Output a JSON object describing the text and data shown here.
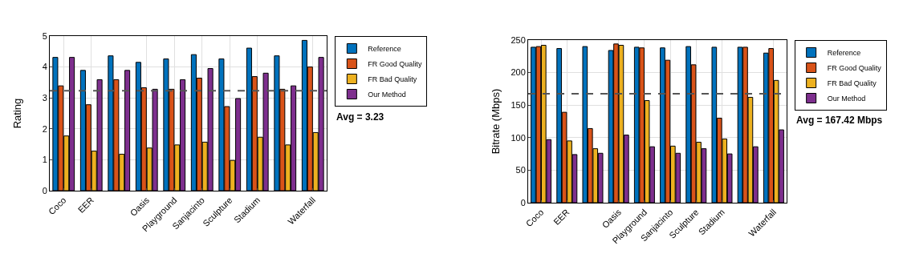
{
  "chart_data": [
    {
      "type": "bar",
      "ylabel": "Rating",
      "categories": [
        "Coco",
        "EER",
        null,
        "Oasis",
        "Playground",
        "Sanjacinto",
        "Sculpture",
        "Stadium",
        null,
        "Waterfall"
      ],
      "series": [
        {
          "name": "Reference",
          "color": "#0072bd",
          "values": [
            4.31,
            3.89,
            4.36,
            4.15,
            4.26,
            4.4,
            4.26,
            4.61,
            4.36,
            4.86
          ]
        },
        {
          "name": "FR Good Quality",
          "color": "#d95319",
          "values": [
            3.39,
            2.78,
            3.59,
            3.33,
            3.28,
            3.64,
            2.72,
            3.69,
            3.28,
            4.0
          ]
        },
        {
          "name": "FR Bad Quality",
          "color": "#edb120",
          "values": [
            1.77,
            1.28,
            1.18,
            1.38,
            1.48,
            1.57,
            0.98,
            1.73,
            1.48,
            1.88
          ]
        },
        {
          "name": "Our Method",
          "color": "#7e2f8e",
          "values": [
            4.31,
            3.59,
            3.89,
            3.28,
            3.59,
            3.95,
            2.98,
            3.8,
            3.39,
            4.31
          ]
        }
      ],
      "ylim": [
        0,
        5
      ],
      "yticks": [
        0,
        1,
        2,
        3,
        4,
        5
      ],
      "grid": true,
      "legend": "right",
      "ref_lines": [
        {
          "axis": "y",
          "value": 3.23,
          "label": "Avg = 3.23",
          "color": "#555555",
          "line_style": "dashed"
        }
      ]
    },
    {
      "type": "bar",
      "ylabel": "Bitrate (Mbps)",
      "categories": [
        "Coco",
        "EER",
        null,
        "Oasis",
        "Playground",
        "Sanjacinto",
        "Sculpture",
        "Stadium",
        null,
        "Waterfall"
      ],
      "series": [
        {
          "name": "Reference",
          "color": "#0072bd",
          "values": [
            239,
            237,
            240,
            234,
            239,
            238,
            240,
            239,
            239,
            230
          ]
        },
        {
          "name": "FR Good Quality",
          "color": "#d95319",
          "values": [
            240,
            139,
            114,
            244,
            238,
            219,
            212,
            130,
            239,
            237
          ]
        },
        {
          "name": "FR Bad Quality",
          "color": "#edb120",
          "values": [
            242,
            95,
            83,
            242,
            157,
            87,
            93,
            98,
            162,
            188
          ]
        },
        {
          "name": "Our Method",
          "color": "#7e2f8e",
          "values": [
            97,
            74,
            76,
            104,
            86,
            76,
            83,
            75,
            86,
            112
          ]
        }
      ],
      "ylim": [
        0,
        250
      ],
      "yticks": [
        0,
        50,
        100,
        150,
        200,
        250
      ],
      "grid": true,
      "legend": "right",
      "ref_lines": [
        {
          "axis": "y",
          "value": 167.42,
          "label": "Avg = 167.42 Mbps",
          "color": "#555555",
          "line_style": "dashed"
        }
      ]
    }
  ]
}
